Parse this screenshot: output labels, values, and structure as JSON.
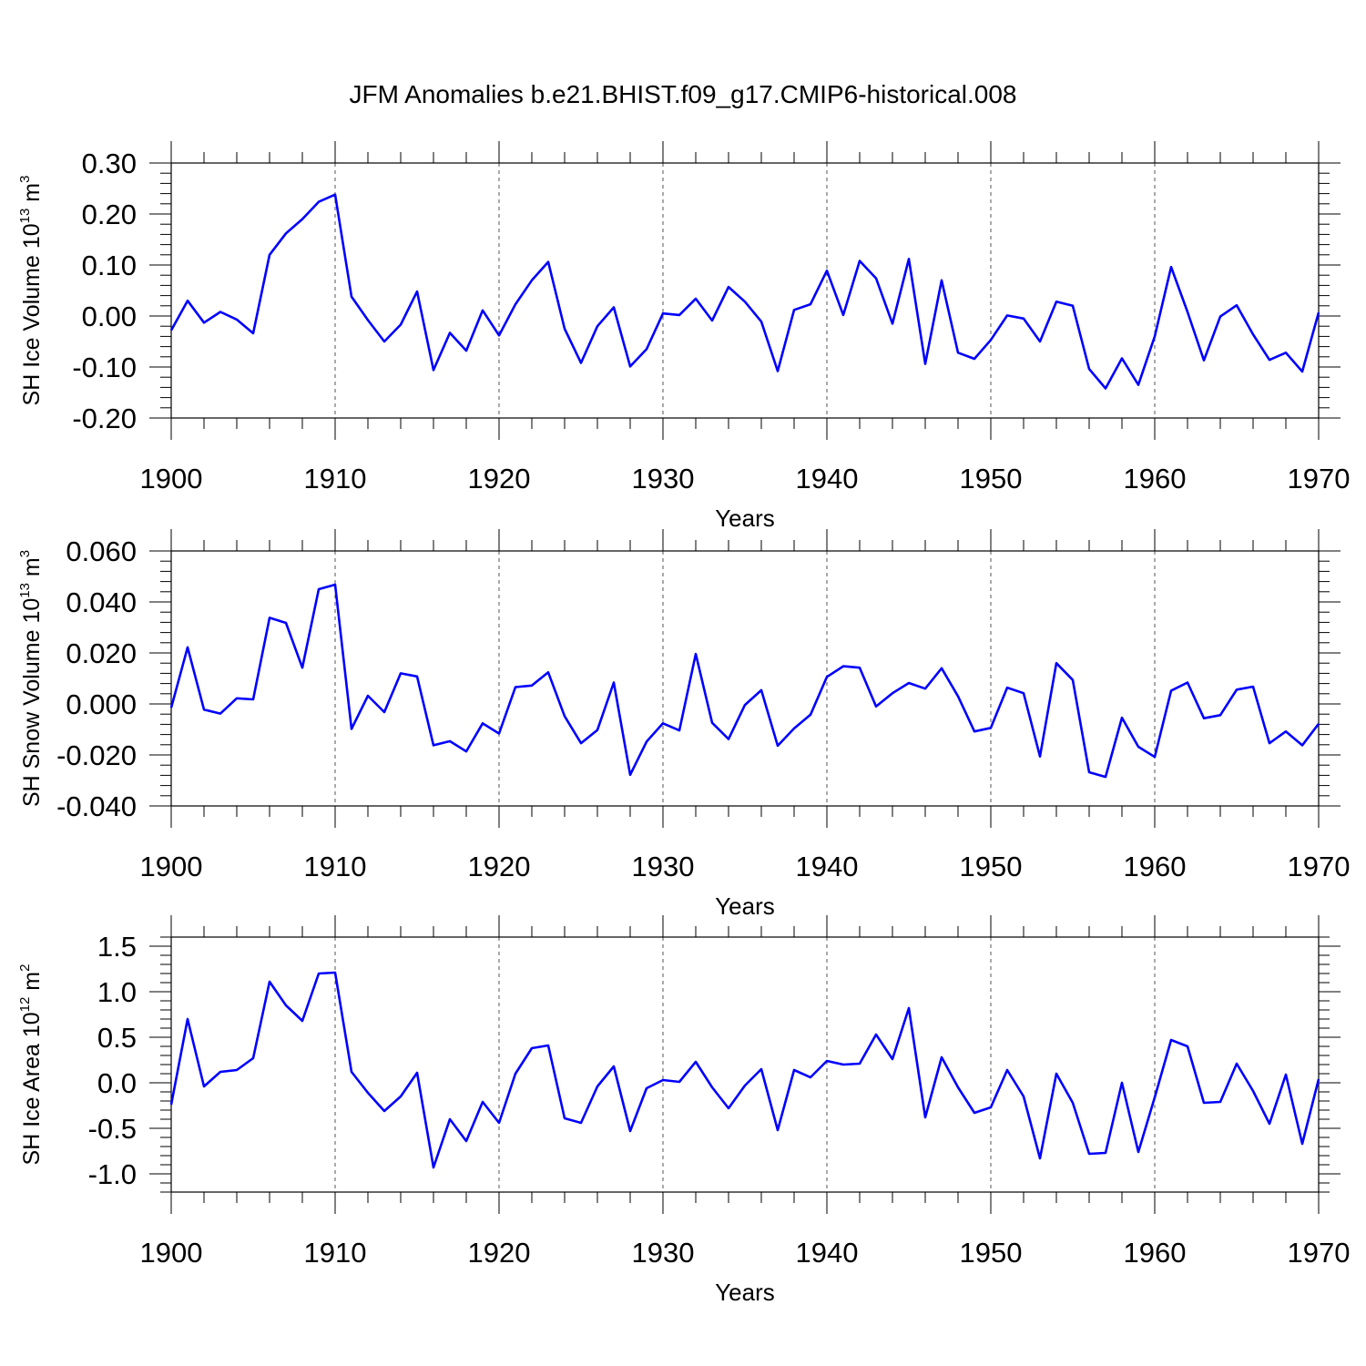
{
  "page": {
    "title": "JFM Anomalies b.e21.BHIST.f09_g17.CMIP6-historical.008"
  },
  "colors": {
    "line": "#0000ff",
    "axis": "#000000",
    "grid": "#555555"
  },
  "chart_data": [
    {
      "type": "line",
      "title": "JFM Anomalies b.e21.BHIST.f09_g17.CMIP6-historical.008",
      "xlabel": "Years",
      "ylabel_main": "SH Ice Volume 10",
      "ylabel_exp": "13",
      "ylabel_unit": " m",
      "ylabel_unit_exp": "3",
      "xlim": [
        1900,
        1970
      ],
      "ylim": [
        -0.2,
        0.3
      ],
      "xticks": [
        "1900",
        "1910",
        "1920",
        "1930",
        "1940",
        "1950",
        "1960",
        "1970"
      ],
      "ytick_values": [
        -0.2,
        -0.1,
        0.0,
        0.1,
        0.2,
        0.3
      ],
      "yticks": [
        "-0.20",
        "-0.10",
        "0.00",
        "0.10",
        "0.20",
        "0.30"
      ],
      "grid": "vertical dashed at decades",
      "x": [
        1900,
        1901,
        1902,
        1903,
        1904,
        1905,
        1906,
        1907,
        1908,
        1909,
        1910,
        1911,
        1912,
        1913,
        1914,
        1915,
        1916,
        1917,
        1918,
        1919,
        1920,
        1921,
        1922,
        1923,
        1924,
        1925,
        1926,
        1927,
        1928,
        1929,
        1930,
        1931,
        1932,
        1933,
        1934,
        1935,
        1936,
        1937,
        1938,
        1939,
        1940,
        1941,
        1942,
        1943,
        1944,
        1945,
        1946,
        1947,
        1948,
        1949,
        1950,
        1951,
        1952,
        1953,
        1954,
        1955,
        1956,
        1957,
        1958,
        1959,
        1960,
        1961,
        1962,
        1963,
        1964,
        1965,
        1966,
        1967,
        1968,
        1969,
        1970
      ],
      "values": [
        -0.028,
        0.03,
        -0.013,
        0.008,
        -0.007,
        -0.034,
        0.12,
        0.162,
        0.19,
        0.224,
        0.238,
        0.038,
        -0.008,
        -0.05,
        -0.017,
        0.048,
        -0.106,
        -0.033,
        -0.068,
        0.011,
        -0.038,
        0.023,
        0.07,
        0.106,
        -0.025,
        -0.092,
        -0.02,
        0.017,
        -0.099,
        -0.065,
        0.005,
        0.002,
        0.034,
        -0.009,
        0.057,
        0.028,
        -0.011,
        -0.108,
        0.012,
        0.023,
        0.089,
        0.002,
        0.108,
        0.074,
        -0.015,
        0.112,
        -0.094,
        0.07,
        -0.072,
        -0.084,
        -0.047,
        0.001,
        -0.005,
        -0.05,
        0.028,
        0.02,
        -0.104,
        -0.142,
        -0.083,
        -0.135,
        -0.04,
        0.096,
        0.008,
        -0.087,
        -0.001,
        0.021,
        -0.036,
        -0.086,
        -0.072,
        -0.109,
        0.007
      ]
    },
    {
      "type": "line",
      "xlabel": "Years",
      "ylabel_main": "SH Snow Volume 10",
      "ylabel_exp": "13",
      "ylabel_unit": " m",
      "ylabel_unit_exp": "3",
      "xlim": [
        1900,
        1970
      ],
      "ylim": [
        -0.04,
        0.06
      ],
      "xticks": [
        "1900",
        "1910",
        "1920",
        "1930",
        "1940",
        "1950",
        "1960",
        "1970"
      ],
      "ytick_values": [
        -0.04,
        -0.02,
        0.0,
        0.02,
        0.04,
        0.06
      ],
      "yticks": [
        "-0.040",
        "-0.020",
        "0.000",
        "0.020",
        "0.040",
        "0.060"
      ],
      "grid": "vertical dashed at decades",
      "x": [
        1900,
        1901,
        1902,
        1903,
        1904,
        1905,
        1906,
        1907,
        1908,
        1909,
        1910,
        1911,
        1912,
        1913,
        1914,
        1915,
        1916,
        1917,
        1918,
        1919,
        1920,
        1921,
        1922,
        1923,
        1924,
        1925,
        1926,
        1927,
        1928,
        1929,
        1930,
        1931,
        1932,
        1933,
        1934,
        1935,
        1936,
        1937,
        1938,
        1939,
        1940,
        1941,
        1942,
        1943,
        1944,
        1945,
        1946,
        1947,
        1948,
        1949,
        1950,
        1951,
        1952,
        1953,
        1954,
        1955,
        1956,
        1957,
        1958,
        1959,
        1960,
        1961,
        1962,
        1963,
        1964,
        1965,
        1966,
        1967,
        1968,
        1969,
        1970
      ],
      "values": [
        -0.0015,
        0.0222,
        -0.0022,
        -0.0038,
        0.0022,
        0.0018,
        0.0338,
        0.0318,
        0.0142,
        0.045,
        0.0468,
        -0.0098,
        0.0032,
        -0.0032,
        0.012,
        0.0108,
        -0.0162,
        -0.0146,
        -0.0186,
        -0.0076,
        -0.0116,
        0.0066,
        0.0072,
        0.0124,
        -0.0048,
        -0.0154,
        -0.0102,
        0.0084,
        -0.0278,
        -0.0148,
        -0.0076,
        -0.0104,
        0.0196,
        -0.0074,
        -0.0138,
        -0.0004,
        0.0054,
        -0.0164,
        -0.0096,
        -0.0042,
        0.0106,
        0.0148,
        0.0142,
        -0.001,
        0.0042,
        0.0082,
        0.006,
        0.014,
        0.003,
        -0.0108,
        -0.0094,
        0.0064,
        0.0042,
        -0.0206,
        0.016,
        0.0094,
        -0.0268,
        -0.0286,
        -0.0054,
        -0.0168,
        -0.0208,
        0.0052,
        0.0084,
        -0.0056,
        -0.0044,
        0.0056,
        0.0068,
        -0.0154,
        -0.0108,
        -0.0162,
        -0.0078
      ]
    },
    {
      "type": "line",
      "xlabel": "Years",
      "ylabel_main": "SH Ice Area 10",
      "ylabel_exp": "12",
      "ylabel_unit": " m",
      "ylabel_unit_exp": "2",
      "xlim": [
        1900,
        1970
      ],
      "ylim": [
        -1.2,
        1.6
      ],
      "xticks": [
        "1900",
        "1910",
        "1920",
        "1930",
        "1940",
        "1950",
        "1960",
        "1970"
      ],
      "ytick_values": [
        -1.0,
        -0.5,
        0.0,
        0.5,
        1.0,
        1.5
      ],
      "yticks": [
        "-1.0",
        "-0.5",
        "0.0",
        "0.5",
        "1.0",
        "1.5"
      ],
      "grid": "vertical dashed at decades",
      "x": [
        1900,
        1901,
        1902,
        1903,
        1904,
        1905,
        1906,
        1907,
        1908,
        1909,
        1910,
        1911,
        1912,
        1913,
        1914,
        1915,
        1916,
        1917,
        1918,
        1919,
        1920,
        1921,
        1922,
        1923,
        1924,
        1925,
        1926,
        1927,
        1928,
        1929,
        1930,
        1931,
        1932,
        1933,
        1934,
        1935,
        1936,
        1937,
        1938,
        1939,
        1940,
        1941,
        1942,
        1943,
        1944,
        1945,
        1946,
        1947,
        1948,
        1949,
        1950,
        1951,
        1952,
        1953,
        1954,
        1955,
        1956,
        1957,
        1958,
        1959,
        1960,
        1961,
        1962,
        1963,
        1964,
        1965,
        1966,
        1967,
        1968,
        1969,
        1970
      ],
      "values": [
        -0.24,
        0.7,
        -0.04,
        0.12,
        0.14,
        0.27,
        1.11,
        0.85,
        0.68,
        1.2,
        1.21,
        0.12,
        -0.11,
        -0.31,
        -0.15,
        0.11,
        -0.93,
        -0.4,
        -0.64,
        -0.21,
        -0.44,
        0.1,
        0.38,
        0.41,
        -0.39,
        -0.44,
        -0.04,
        0.18,
        -0.53,
        -0.06,
        0.03,
        0.01,
        0.23,
        -0.05,
        -0.28,
        -0.03,
        0.15,
        -0.52,
        0.14,
        0.06,
        0.24,
        0.2,
        0.21,
        0.53,
        0.26,
        0.82,
        -0.38,
        0.28,
        -0.05,
        -0.33,
        -0.27,
        0.14,
        -0.15,
        -0.83,
        0.1,
        -0.22,
        -0.78,
        -0.77,
        0.0,
        -0.76,
        -0.16,
        0.47,
        0.4,
        -0.22,
        -0.21,
        0.21,
        -0.09,
        -0.45,
        0.09,
        -0.67,
        0.04
      ]
    }
  ]
}
